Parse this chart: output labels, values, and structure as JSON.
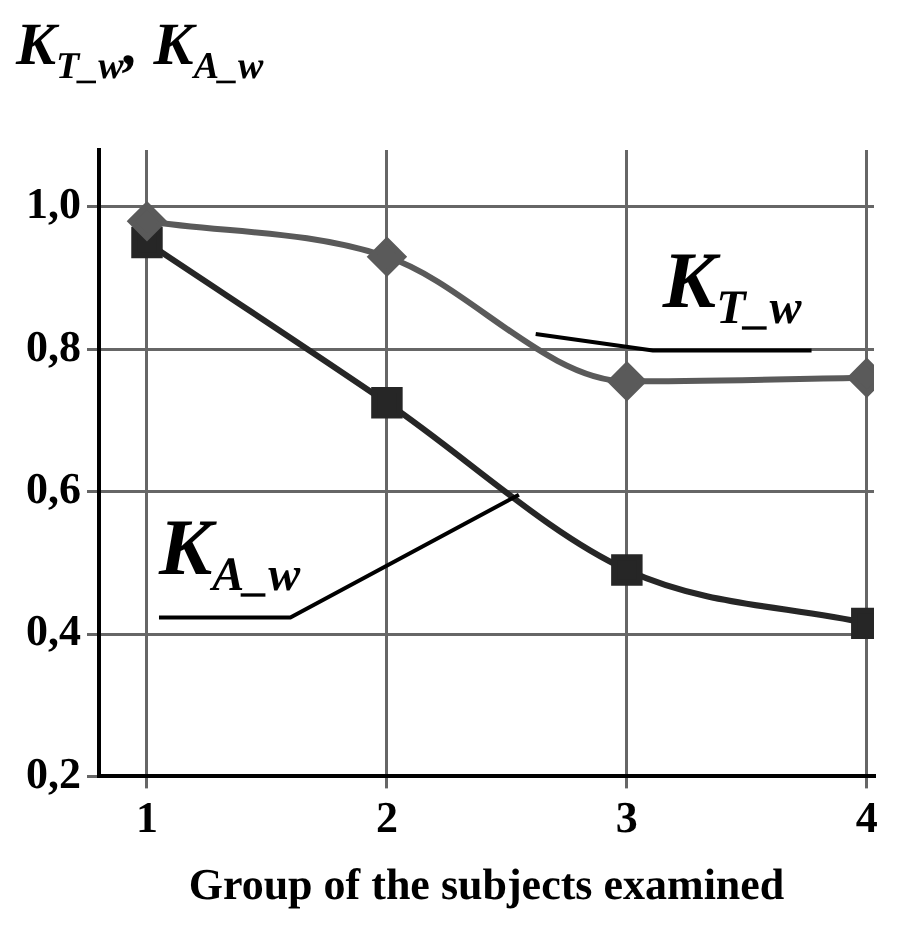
{
  "chart_data": {
    "type": "line",
    "ylabel": "K$_{T_w}$, K$_{A_w}$",
    "xlabel": "Group of the subjects examined",
    "x": [
      1,
      2,
      3,
      4
    ],
    "series": [
      {
        "name": "K$_{T_w}$",
        "color": "#5a5a5a",
        "marker": "diamond",
        "values": [
          0.98,
          0.93,
          0.755,
          0.76
        ]
      },
      {
        "name": "K$_{A_w}$",
        "color": "#262626",
        "marker": "square",
        "values": [
          0.95,
          0.725,
          0.49,
          0.415
        ]
      }
    ],
    "xlim": [
      0.8,
      4.03
    ],
    "xticks": [
      1,
      2,
      3,
      4
    ],
    "ylim": [
      0.2,
      1.08
    ],
    "yticks": [
      {
        "value": 0.2,
        "label": "0,2"
      },
      {
        "value": 0.4,
        "label": "0,4"
      },
      {
        "value": 0.6,
        "label": "0,6"
      },
      {
        "value": 0.8,
        "label": "0,8"
      },
      {
        "value": 1.0,
        "label": "1,0"
      }
    ],
    "grid": true,
    "legend": false
  }
}
